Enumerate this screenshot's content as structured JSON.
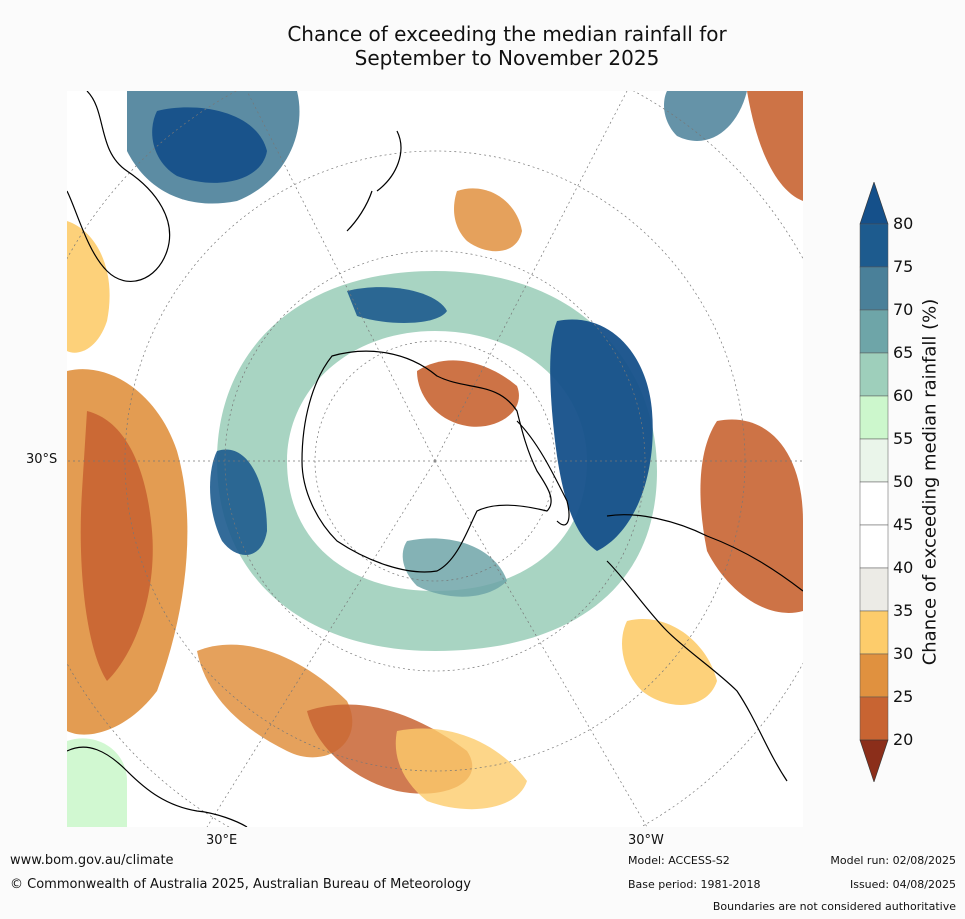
{
  "title": {
    "line1": "Chance of exceeding the median rainfall for",
    "line2": "September to November 2025"
  },
  "axes": {
    "lat_label": "30°S",
    "lon_east_label": "30°E",
    "lon_west_label": "30°W"
  },
  "colorbar": {
    "label": "Chance of exceeding median rainfall (%)",
    "ticks": [
      "80",
      "75",
      "70",
      "65",
      "60",
      "55",
      "50",
      "45",
      "40",
      "35",
      "30",
      "25",
      "20"
    ],
    "colors": {
      "above_80": "#15508a",
      "75_80": "#1d5b8e",
      "70_75": "#4a8099",
      "65_70": "#6ea5a8",
      "60_65": "#9ecfbb",
      "55_60": "#ccf7cc",
      "50_55": "#eaf5ea",
      "45_50": "#ffffff",
      "40_45": "#ffffff",
      "35_40": "#ecebe6",
      "30_35": "#fdcc6b",
      "25_30": "#e0913f",
      "20_25": "#c86432",
      "below_20": "#a2452a",
      "extreme_low": "#8b2e1a"
    }
  },
  "footer": {
    "website": "www.bom.gov.au/climate",
    "copyright": "© Commonwealth of Australia 2025, Australian Bureau of Meteorology",
    "model": "Model: ACCESS-S2",
    "base_period": "Base period: 1981-2018",
    "model_run": "Model run: 02/08/2025",
    "issued": "Issued: 04/08/2025",
    "disclaimer": "Boundaries are not considered authoritative"
  }
}
